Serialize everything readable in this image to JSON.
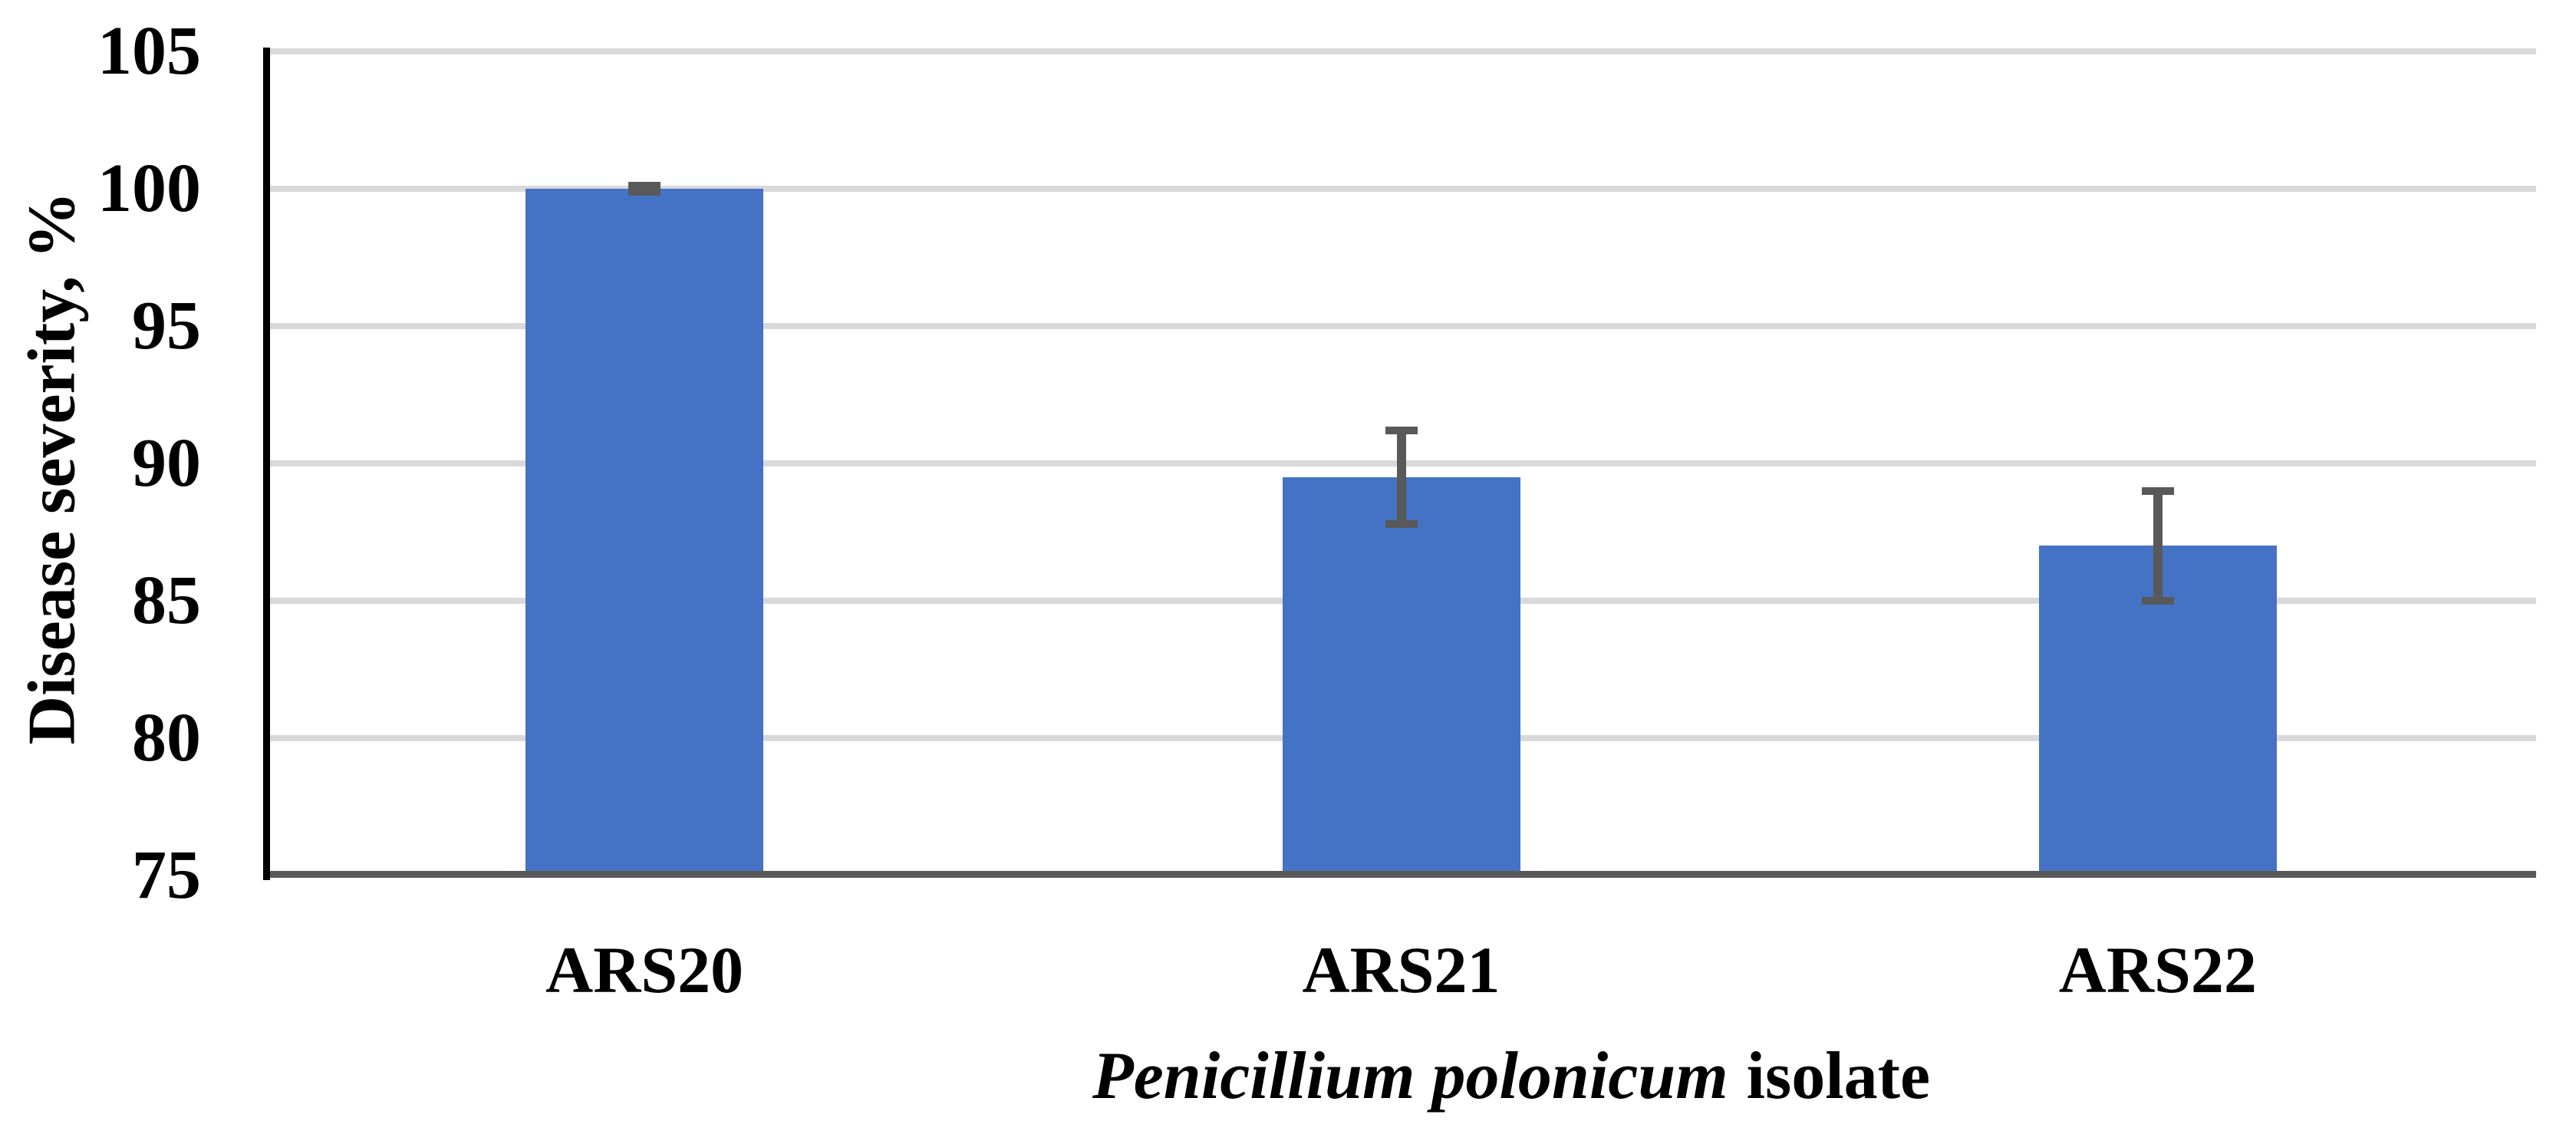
{
  "chart_data": {
    "type": "bar",
    "categories": [
      "ARS20",
      "ARS21",
      "ARS22"
    ],
    "values": [
      100,
      89.5,
      87
    ],
    "error_plus": [
      0.1,
      1.7,
      2.0
    ],
    "error_minus": [
      0.1,
      1.7,
      2.0
    ],
    "ylabel": "Disease severity, %",
    "xlabel_italic": "Penicillium polonicum",
    "xlabel_regular": "isolate",
    "ylim": [
      75,
      105
    ],
    "yticks": [
      75,
      80,
      85,
      90,
      95,
      100,
      105
    ],
    "grid": "horizontal",
    "legend": "none",
    "bar_color": "#4472C4",
    "error_bar_color": "#595959",
    "gridline_color": "#D9D9D9",
    "y_axis_line_color": "#000000",
    "x_axis_line_color": "#595959",
    "text_color": "#000000"
  }
}
